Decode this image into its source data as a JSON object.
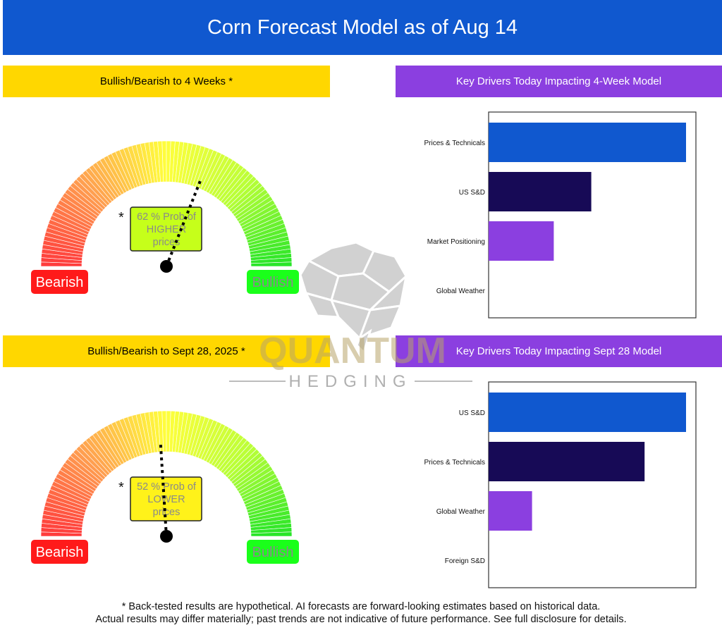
{
  "title": "Corn Forecast Model as of Aug 14",
  "panels": {
    "gauge1_title": "Bullish/Bearish to 4 Weeks *",
    "drivers1_title": "Key Drivers Today Impacting 4-Week Model",
    "gauge2_title": "Bullish/Bearish to Sept 28, 2025 *",
    "drivers2_title": "Key Drivers Today Impacting Sept 28 Model"
  },
  "gauges": [
    {
      "probability": 62,
      "lines": [
        "62 % Prob of",
        "HIGHER",
        "prices"
      ],
      "asterisk": "*",
      "box_color": "#c6ff1a",
      "bearish_label": "Bearish",
      "bullish_label": "Bullish",
      "bullish_fraction": 0.62
    },
    {
      "probability": 52,
      "lines": [
        "52 % Prob of",
        "LOWER",
        "prices"
      ],
      "asterisk": "*",
      "box_color": "#fff21a",
      "bearish_label": "Bearish",
      "bullish_label": "Bullish",
      "bullish_fraction": 0.48
    }
  ],
  "chart_data": [
    {
      "type": "bar",
      "orientation": "horizontal",
      "categories": [
        "Prices & Technicals",
        "US S&D",
        "Market Positioning",
        "Global Weather"
      ],
      "values": [
        1.0,
        0.52,
        0.33,
        0
      ],
      "colors": [
        "#1058cf",
        "#170a56",
        "#8b3fe0",
        "#8b3fe0"
      ]
    },
    {
      "type": "bar",
      "orientation": "horizontal",
      "categories": [
        "US S&D",
        "Prices & Technicals",
        "Global Weather",
        "Foreign S&D"
      ],
      "values": [
        1.0,
        0.79,
        0.22,
        0
      ],
      "colors": [
        "#1058cf",
        "#170a56",
        "#8b3fe0",
        "#8b3fe0"
      ]
    }
  ],
  "watermark": {
    "name": "QUANTUM",
    "sub": "HEDGING"
  },
  "disclaimer": [
    "* Back-tested results are hypothetical. AI forecasts are forward-looking estimates based on historical data.",
    "Actual results may differ materially; past trends are not indicative of future performance. See full disclosure for details."
  ]
}
